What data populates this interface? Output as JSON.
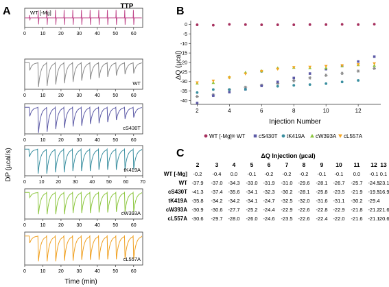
{
  "panel_labels": {
    "a": "A",
    "b": "B",
    "c": "C"
  },
  "panel_a": {
    "title": "TTP",
    "y_axis_label": "DP (µcal/s)",
    "x_axis_label": "Time (min)"
  },
  "panel_b": {
    "y_axis_label": "ΔQ (µcal)",
    "x_axis_label": "Injection Number"
  },
  "panel_c": {
    "title": "ΔQ Injection (µcal)"
  },
  "chart_data": [
    {
      "type": "line",
      "panel": "A",
      "description_free": true,
      "x_ticks": [
        0,
        10,
        20,
        30,
        40,
        50,
        60,
        70
      ],
      "subplots": [
        {
          "label": "WT [-Mg]",
          "label_pos": "top-left",
          "color": "#c0458a",
          "xlim": [
            0,
            65
          ],
          "x_ticks": [
            0,
            10,
            20,
            30,
            40,
            50,
            60
          ],
          "shape": "spikes",
          "injections": 13,
          "amplitudes": [
            0.3,
            0.8,
            0.85,
            0.85,
            0.85,
            0.85,
            0.85,
            0.85,
            0.85,
            0.85,
            0.85,
            0.85,
            0.85
          ]
        },
        {
          "label": "WT",
          "label_pos": "bottom-right",
          "color": "#8a8a8a",
          "xlim": [
            0,
            65
          ],
          "x_ticks": [
            0,
            10,
            20,
            30,
            40,
            50,
            60
          ],
          "shape": "exotherm",
          "injections": 13,
          "amplitudes": [
            0.3,
            0.95,
            0.9,
            0.85,
            0.8,
            0.75,
            0.7,
            0.65,
            0.6,
            0.55,
            0.5,
            0.45,
            0.42
          ]
        },
        {
          "label": "cS430T",
          "label_pos": "bottom-right",
          "color": "#5c5aa6",
          "xlim": [
            0,
            65
          ],
          "x_ticks": [
            0,
            10,
            20,
            30,
            40,
            50,
            60
          ],
          "shape": "exotherm",
          "injections": 13,
          "amplitudes": [
            0.35,
            1.0,
            0.95,
            0.85,
            0.8,
            0.75,
            0.72,
            0.65,
            0.62,
            0.58,
            0.5,
            0.45,
            0.4
          ]
        },
        {
          "label": "tK419A",
          "label_pos": "bottom-right",
          "color": "#3a8fa0",
          "xlim": [
            0,
            70
          ],
          "x_ticks": [
            0,
            10,
            20,
            30,
            40,
            50,
            60,
            70
          ],
          "shape": "exotherm",
          "injections": 13,
          "amplitudes": [
            0.3,
            0.95,
            0.95,
            0.9,
            0.9,
            0.85,
            0.85,
            0.85,
            0.8,
            0.8,
            0.8,
            0.78,
            0.78
          ]
        },
        {
          "label": "cW393A",
          "label_pos": "bottom-right",
          "color": "#8cc63f",
          "xlim": [
            0,
            65
          ],
          "x_ticks": [
            0,
            10,
            20,
            30,
            40,
            50,
            60
          ],
          "shape": "exotherm",
          "injections": 13,
          "amplitudes": [
            0.2,
            0.85,
            0.85,
            0.85,
            0.85,
            0.8,
            0.8,
            0.8,
            0.78,
            0.78,
            0.76,
            0.75,
            0.75
          ]
        },
        {
          "label": "cL557A",
          "label_pos": "bottom-right",
          "color": "#f0a020",
          "xlim": [
            0,
            65
          ],
          "x_ticks": [
            0,
            10,
            20,
            30,
            40,
            50,
            60
          ],
          "shape": "exotherm",
          "injections": 13,
          "amplitudes": [
            0.25,
            0.9,
            0.9,
            0.9,
            0.88,
            0.88,
            0.85,
            0.85,
            0.85,
            0.83,
            0.83,
            0.82,
            0.82
          ]
        }
      ]
    },
    {
      "type": "scatter",
      "panel": "B",
      "xlabel": "Injection Number",
      "ylabel": "ΔQ (µcal)",
      "xlim": [
        1.6,
        13.4
      ],
      "ylim": [
        -42,
        2
      ],
      "x_ticks": [
        2,
        4,
        6,
        8,
        10,
        12
      ],
      "y_ticks": [
        0,
        -5,
        -10,
        -15,
        -20,
        -25,
        -30,
        -35,
        -40
      ],
      "legend_position": "bottom",
      "x": [
        2,
        3,
        4,
        5,
        6,
        7,
        8,
        9,
        10,
        11,
        12,
        13
      ],
      "series": [
        {
          "name": "WT [-Mg]",
          "marker": "circle",
          "color": "#a6305e",
          "values": [
            -0.2,
            -0.4,
            0.0,
            -0.1,
            -0.2,
            -0.2,
            -0.2,
            -0.1,
            -0.1,
            0.0,
            -0.1,
            0.1
          ]
        },
        {
          "name": "WT",
          "marker": "asterisk",
          "color": "#8a8a8a",
          "values": [
            -37.9,
            -37.0,
            -34.3,
            -33.0,
            -31.9,
            -31.0,
            -29.6,
            -28.1,
            -26.7,
            -25.7,
            -24.5,
            -23.1
          ]
        },
        {
          "name": "cS430T",
          "marker": "square",
          "color": "#5c5aa6",
          "values": [
            -41.3,
            -37.4,
            -35.6,
            -34.1,
            -32.3,
            -30.2,
            -28.1,
            -25.8,
            -23.5,
            -21.9,
            -19.5,
            -16.9
          ]
        },
        {
          "name": "tK419A",
          "marker": "circle",
          "color": "#3a8fa0",
          "values": [
            -35.8,
            -34.2,
            -34.2,
            -34.1,
            -24.7,
            -32.5,
            -32.0,
            -31.6,
            -31.1,
            -30.2,
            -29.4,
            null
          ]
        },
        {
          "name": "cW393A",
          "marker": "triangle-up",
          "color": "#8cc63f",
          "values": [
            -30.9,
            -30.6,
            -27.7,
            -25.2,
            -24.4,
            -22.9,
            -22.6,
            -22.8,
            -22.9,
            -21.8,
            -21.2,
            -21.6
          ]
        },
        {
          "name": "cL557A",
          "marker": "triangle-down",
          "color": "#f5a623",
          "values": [
            -30.6,
            -29.7,
            -28.0,
            -26.0,
            -24.6,
            -23.5,
            -22.6,
            -22.4,
            -22.0,
            -21.6,
            -21.1,
            -20.6
          ]
        }
      ]
    },
    {
      "type": "table",
      "panel": "C",
      "title": "ΔQ Injection (µcal)",
      "columns": [
        "2",
        "3",
        "4",
        "5",
        "6",
        "7",
        "8",
        "9",
        "10",
        "11",
        "12",
        "13"
      ],
      "rows": [
        {
          "label": "WT [-Mg]",
          "values": [
            "-0.2",
            "-0.4",
            "0.0",
            "-0.1",
            "-0.2",
            "-0.2",
            "-0.2",
            "-0.1",
            "-0.1",
            "0.0",
            "-0.1",
            "0.1"
          ]
        },
        {
          "label": "WT",
          "values": [
            "-37.9",
            "-37.0",
            "-34.3",
            "-33.0",
            "-31.9",
            "-31.0",
            "-29.6",
            "-28.1",
            "-26.7",
            "-25.7",
            "-24.5",
            "-23.1"
          ]
        },
        {
          "label": "cS430T",
          "values": [
            "-41.3",
            "-37.4",
            "-35.6",
            "-34.1",
            "-32.3",
            "-30.2",
            "-28.1",
            "-25.8",
            "-23.5",
            "-21.9",
            "-19.5",
            "-16.9"
          ]
        },
        {
          "label": "tK419A",
          "values": [
            "-35.8",
            "-34.2",
            "-34.2",
            "-34.1",
            "-24.7",
            "-32.5",
            "-32.0",
            "-31.6",
            "-31.1",
            "-30.2",
            "-29.4",
            ""
          ]
        },
        {
          "label": "cW393A",
          "values": [
            "-30.9",
            "-30.6",
            "-27.7",
            "-25.2",
            "-24.4",
            "-22.9",
            "-22.6",
            "-22.8",
            "-22.9",
            "-21.8",
            "-21.2",
            "-21.6"
          ]
        },
        {
          "label": "cL557A",
          "values": [
            "-30.6",
            "-29.7",
            "-28.0",
            "-26.0",
            "-24.6",
            "-23.5",
            "-22.6",
            "-22.4",
            "-22.0",
            "-21.6",
            "-21.1",
            "-20.6"
          ]
        }
      ]
    }
  ]
}
